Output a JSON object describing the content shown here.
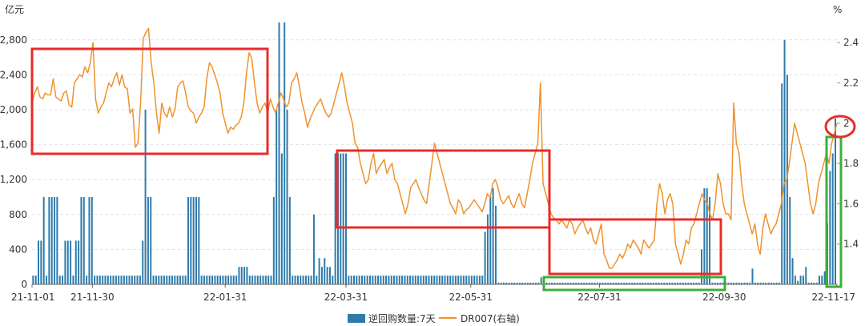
{
  "chart_data": {
    "type": "bar+line",
    "left_unit": "亿元",
    "right_unit": "%",
    "x_tick_labels": [
      "21-11-01",
      "21-11-30",
      "22-01-31",
      "22-03-31",
      "22-05-31",
      "22-07-31",
      "22-09-30",
      "22-11-17"
    ],
    "left_axis": {
      "min": 0,
      "max": 3000,
      "ticks": [
        0,
        400,
        800,
        1200,
        1600,
        2000,
        2400,
        2800
      ]
    },
    "right_axis": {
      "min": 1.2,
      "max": 2.5,
      "ticks": [
        1.4,
        1.6,
        1.8,
        2.0,
        2.2,
        2.4
      ]
    },
    "grid": true,
    "legend_position": "bottom",
    "series": [
      {
        "name": "逆回购数量:7天",
        "type": "bar",
        "axis": "left",
        "color": "#2e7bab",
        "values": [
          100,
          100,
          500,
          500,
          1000,
          100,
          1000,
          1000,
          1000,
          1000,
          100,
          100,
          500,
          500,
          500,
          100,
          500,
          500,
          1000,
          1000,
          100,
          1000,
          1000,
          100,
          100,
          100,
          100,
          100,
          100,
          100,
          100,
          100,
          100,
          100,
          100,
          100,
          100,
          100,
          100,
          100,
          100,
          500,
          2000,
          1000,
          1000,
          100,
          100,
          100,
          100,
          100,
          100,
          100,
          100,
          100,
          100,
          100,
          100,
          100,
          1000,
          1000,
          1000,
          1000,
          1000,
          100,
          100,
          100,
          100,
          100,
          100,
          100,
          100,
          100,
          100,
          100,
          100,
          100,
          100,
          200,
          200,
          200,
          200,
          100,
          100,
          100,
          100,
          100,
          100,
          100,
          100,
          100,
          1000,
          2000,
          3000,
          1500,
          3000,
          2000,
          1000,
          100,
          100,
          100,
          100,
          100,
          100,
          100,
          100,
          800,
          100,
          300,
          200,
          300,
          200,
          200,
          100,
          1500,
          1500,
          1500,
          1500,
          1500,
          100,
          100,
          100,
          100,
          100,
          100,
          100,
          100,
          100,
          100,
          100,
          100,
          100,
          100,
          100,
          100,
          100,
          100,
          100,
          100,
          100,
          100,
          100,
          100,
          100,
          100,
          100,
          100,
          100,
          100,
          100,
          100,
          100,
          100,
          100,
          100,
          100,
          100,
          100,
          100,
          100,
          100,
          100,
          100,
          100,
          100,
          100,
          100,
          100,
          100,
          100,
          600,
          800,
          1000,
          1100,
          900,
          20,
          20,
          20,
          20,
          20,
          20,
          20,
          20,
          20,
          20,
          20,
          20,
          20,
          20,
          20,
          20,
          80,
          20,
          20,
          20,
          20,
          20,
          20,
          20,
          20,
          20,
          20,
          20,
          20,
          20,
          20,
          20,
          20,
          20,
          20,
          20,
          20,
          20,
          20,
          20,
          20,
          20,
          20,
          20,
          20,
          20,
          20,
          20,
          20,
          20,
          20,
          20,
          20,
          20,
          20,
          20,
          20,
          20,
          20,
          20,
          20,
          20,
          20,
          20,
          20,
          20,
          20,
          20,
          20,
          20,
          20,
          20,
          20,
          20,
          20,
          20,
          400,
          1100,
          1100,
          1000,
          20,
          20,
          20,
          20,
          20,
          20,
          20,
          20,
          20,
          20,
          20,
          20,
          20,
          20,
          20,
          180,
          20,
          20,
          20,
          20,
          20,
          20,
          20,
          20,
          20,
          20,
          2300,
          2800,
          2400,
          1000,
          300,
          100,
          40,
          100,
          100,
          200,
          20,
          20,
          20,
          20,
          100,
          100,
          150,
          700,
          1300,
          1500,
          1900
        ]
      },
      {
        "name": "DR007(右轴)",
        "type": "line",
        "axis": "right",
        "color": "#f0922e",
        "values": [
          2.1,
          2.15,
          2.18,
          2.13,
          2.12,
          2.15,
          2.14,
          2.14,
          2.22,
          2.13,
          2.12,
          2.11,
          2.15,
          2.16,
          2.09,
          2.08,
          2.2,
          2.22,
          2.24,
          2.23,
          2.28,
          2.25,
          2.3,
          2.4,
          2.12,
          2.05,
          2.08,
          2.1,
          2.15,
          2.2,
          2.18,
          2.22,
          2.25,
          2.19,
          2.24,
          2.18,
          2.17,
          2.05,
          2.07,
          1.88,
          1.9,
          2.1,
          2.42,
          2.45,
          2.47,
          2.3,
          2.2,
          2.05,
          1.95,
          2.1,
          2.05,
          2.03,
          2.08,
          2.03,
          2.07,
          2.18,
          2.2,
          2.21,
          2.15,
          2.08,
          2.06,
          2.05,
          2.0,
          2.03,
          2.05,
          2.08,
          2.22,
          2.3,
          2.28,
          2.24,
          2.2,
          2.15,
          2.05,
          2.0,
          1.95,
          1.98,
          1.97,
          1.99,
          2.0,
          2.03,
          2.1,
          2.25,
          2.35,
          2.32,
          2.2,
          2.1,
          2.05,
          2.08,
          2.1,
          2.05,
          2.12,
          2.08,
          2.05,
          2.1,
          2.15,
          2.12,
          2.08,
          2.1,
          2.2,
          2.22,
          2.25,
          2.18,
          2.1,
          2.05,
          1.98,
          2.02,
          2.05,
          2.08,
          2.1,
          2.12,
          2.08,
          2.05,
          2.03,
          2.05,
          2.1,
          2.15,
          2.2,
          2.25,
          2.18,
          2.1,
          2.05,
          2.0,
          1.9,
          1.88,
          1.8,
          1.75,
          1.7,
          1.72,
          1.8,
          1.85,
          1.75,
          1.78,
          1.8,
          1.82,
          1.75,
          1.78,
          1.8,
          1.72,
          1.7,
          1.65,
          1.6,
          1.55,
          1.6,
          1.68,
          1.7,
          1.72,
          1.68,
          1.65,
          1.62,
          1.6,
          1.7,
          1.8,
          1.9,
          1.85,
          1.8,
          1.75,
          1.7,
          1.65,
          1.6,
          1.58,
          1.55,
          1.62,
          1.6,
          1.55,
          1.57,
          1.58,
          1.6,
          1.62,
          1.6,
          1.58,
          1.56,
          1.6,
          1.65,
          1.63,
          1.7,
          1.72,
          1.68,
          1.62,
          1.6,
          1.62,
          1.64,
          1.6,
          1.58,
          1.62,
          1.65,
          1.6,
          1.58,
          1.65,
          1.72,
          1.8,
          1.85,
          1.9,
          2.2,
          1.7,
          1.65,
          1.6,
          1.55,
          1.53,
          1.52,
          1.5,
          1.52,
          1.5,
          1.48,
          1.52,
          1.5,
          1.45,
          1.48,
          1.5,
          1.52,
          1.48,
          1.45,
          1.48,
          1.42,
          1.4,
          1.45,
          1.5,
          1.35,
          1.32,
          1.28,
          1.28,
          1.3,
          1.32,
          1.35,
          1.33,
          1.36,
          1.4,
          1.38,
          1.42,
          1.4,
          1.38,
          1.35,
          1.42,
          1.4,
          1.38,
          1.4,
          1.42,
          1.6,
          1.7,
          1.65,
          1.55,
          1.62,
          1.65,
          1.6,
          1.4,
          1.35,
          1.3,
          1.35,
          1.42,
          1.4,
          1.48,
          1.5,
          1.55,
          1.6,
          1.65,
          1.62,
          1.6,
          1.55,
          1.52,
          1.6,
          1.75,
          1.7,
          1.6,
          1.55,
          1.55,
          1.52,
          2.1,
          1.9,
          1.85,
          1.7,
          1.6,
          1.55,
          1.5,
          1.45,
          1.5,
          1.4,
          1.35,
          1.48,
          1.55,
          1.5,
          1.45,
          1.48,
          1.5,
          1.55,
          1.6,
          1.7,
          1.72,
          1.8,
          1.9,
          2.0,
          1.95,
          1.9,
          1.85,
          1.8,
          1.7,
          1.6,
          1.55,
          1.6,
          1.7,
          1.75,
          1.8,
          1.85,
          1.8,
          1.9,
          1.95,
          2.0
        ]
      }
    ],
    "annotations": [
      {
        "type": "rectangle",
        "color": "red",
        "target": "line",
        "x_range": [
          "21-11-01",
          "22-01-31"
        ]
      },
      {
        "type": "rectangle",
        "color": "red",
        "target": "line",
        "x_range": [
          "22-03-31",
          "22-06-20"
        ]
      },
      {
        "type": "rectangle",
        "color": "red",
        "target": "line",
        "x_range": [
          "22-06-20",
          "22-09-20"
        ]
      },
      {
        "type": "rectangle",
        "color": "green",
        "target": "bars",
        "x_range": [
          "22-06-20",
          "22-09-20"
        ]
      },
      {
        "type": "rectangle",
        "color": "green",
        "target": "bars",
        "x_range": [
          "22-11-10",
          "22-11-17"
        ]
      },
      {
        "type": "ellipse",
        "color": "red",
        "target": "line-end",
        "x": "22-11-17",
        "y": 2.0
      }
    ]
  }
}
